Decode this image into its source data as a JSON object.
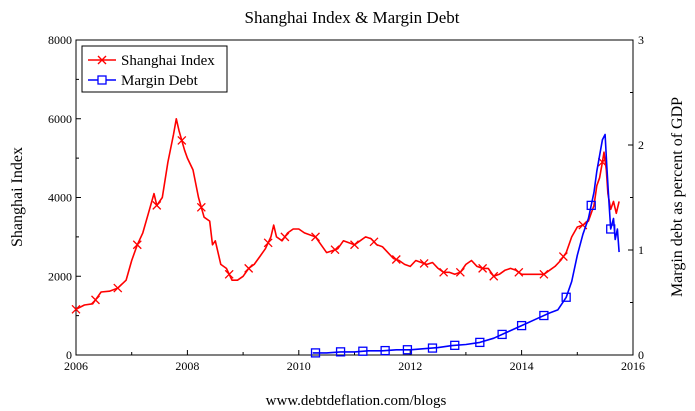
{
  "chart_data": {
    "type": "line",
    "title": "Shanghai Index & Margin Debt",
    "source": "www.debtdeflation.com/blogs",
    "xlabel": "",
    "ylabel_left": "Shanghai Index",
    "ylabel_right": "Margin debt as percent of GDP",
    "xlim": [
      2006,
      2016
    ],
    "ylim_left": [
      0,
      8000
    ],
    "ylim_right": [
      0,
      3
    ],
    "x_ticks": [
      "2006",
      "2008",
      "2010",
      "2012",
      "2014",
      "2016"
    ],
    "y_left_ticks": [
      "0",
      "2000",
      "4000",
      "6000",
      "8000"
    ],
    "y_right_ticks": [
      "0",
      "1",
      "2",
      "3"
    ],
    "grid": false,
    "legend_position": "top-left",
    "series": [
      {
        "name": "Shanghai Index",
        "axis": "left",
        "color": "#ff0000",
        "marker": "x",
        "points": [
          [
            2006.0,
            1160
          ],
          [
            2006.15,
            1270
          ],
          [
            2006.3,
            1300
          ],
          [
            2006.45,
            1600
          ],
          [
            2006.6,
            1620
          ],
          [
            2006.75,
            1700
          ],
          [
            2006.9,
            1900
          ],
          [
            2007.0,
            2400
          ],
          [
            2007.1,
            2800
          ],
          [
            2007.2,
            3100
          ],
          [
            2007.3,
            3600
          ],
          [
            2007.4,
            4100
          ],
          [
            2007.45,
            3800
          ],
          [
            2007.55,
            4000
          ],
          [
            2007.65,
            4900
          ],
          [
            2007.75,
            5600
          ],
          [
            2007.8,
            6000
          ],
          [
            2007.85,
            5700
          ],
          [
            2007.95,
            5200
          ],
          [
            2008.0,
            5000
          ],
          [
            2008.1,
            4700
          ],
          [
            2008.2,
            4000
          ],
          [
            2008.3,
            3500
          ],
          [
            2008.4,
            3400
          ],
          [
            2008.45,
            2800
          ],
          [
            2008.5,
            2900
          ],
          [
            2008.6,
            2300
          ],
          [
            2008.7,
            2200
          ],
          [
            2008.8,
            1900
          ],
          [
            2008.9,
            1900
          ],
          [
            2009.0,
            2000
          ],
          [
            2009.1,
            2200
          ],
          [
            2009.2,
            2300
          ],
          [
            2009.3,
            2500
          ],
          [
            2009.4,
            2700
          ],
          [
            2009.5,
            3000
          ],
          [
            2009.55,
            3300
          ],
          [
            2009.6,
            3000
          ],
          [
            2009.7,
            2900
          ],
          [
            2009.8,
            3100
          ],
          [
            2009.9,
            3200
          ],
          [
            2010.0,
            3200
          ],
          [
            2010.1,
            3100
          ],
          [
            2010.2,
            3050
          ],
          [
            2010.3,
            3000
          ],
          [
            2010.4,
            2800
          ],
          [
            2010.5,
            2600
          ],
          [
            2010.6,
            2650
          ],
          [
            2010.7,
            2700
          ],
          [
            2010.8,
            2900
          ],
          [
            2010.9,
            2850
          ],
          [
            2011.0,
            2800
          ],
          [
            2011.1,
            2900
          ],
          [
            2011.2,
            3000
          ],
          [
            2011.3,
            2950
          ],
          [
            2011.4,
            2800
          ],
          [
            2011.5,
            2750
          ],
          [
            2011.6,
            2600
          ],
          [
            2011.7,
            2450
          ],
          [
            2011.8,
            2400
          ],
          [
            2011.9,
            2300
          ],
          [
            2012.0,
            2250
          ],
          [
            2012.1,
            2400
          ],
          [
            2012.2,
            2350
          ],
          [
            2012.3,
            2300
          ],
          [
            2012.4,
            2350
          ],
          [
            2012.5,
            2200
          ],
          [
            2012.6,
            2100
          ],
          [
            2012.7,
            2100
          ],
          [
            2012.8,
            2050
          ],
          [
            2012.9,
            2100
          ],
          [
            2013.0,
            2300
          ],
          [
            2013.1,
            2400
          ],
          [
            2013.2,
            2250
          ],
          [
            2013.3,
            2200
          ],
          [
            2013.4,
            2200
          ],
          [
            2013.5,
            2000
          ],
          [
            2013.6,
            2050
          ],
          [
            2013.7,
            2150
          ],
          [
            2013.8,
            2200
          ],
          [
            2013.9,
            2150
          ],
          [
            2014.0,
            2050
          ],
          [
            2014.1,
            2050
          ],
          [
            2014.2,
            2050
          ],
          [
            2014.3,
            2050
          ],
          [
            2014.4,
            2050
          ],
          [
            2014.5,
            2150
          ],
          [
            2014.6,
            2250
          ],
          [
            2014.7,
            2400
          ],
          [
            2014.8,
            2600
          ],
          [
            2014.9,
            3000
          ],
          [
            2015.0,
            3250
          ],
          [
            2015.1,
            3300
          ],
          [
            2015.2,
            3400
          ],
          [
            2015.3,
            3800
          ],
          [
            2015.35,
            4300
          ],
          [
            2015.4,
            4500
          ],
          [
            2015.45,
            4900
          ],
          [
            2015.48,
            5150
          ],
          [
            2015.52,
            4700
          ],
          [
            2015.55,
            4100
          ],
          [
            2015.6,
            3700
          ],
          [
            2015.65,
            3900
          ],
          [
            2015.7,
            3600
          ],
          [
            2015.75,
            3900
          ]
        ],
        "markers_x": [
          2006.0,
          2006.35,
          2006.75,
          2007.1,
          2007.45,
          2007.9,
          2008.25,
          2008.75,
          2009.1,
          2009.45,
          2009.75,
          2010.3,
          2010.65,
          2011.0,
          2011.35,
          2011.75,
          2012.25,
          2012.6,
          2012.9,
          2013.3,
          2013.5,
          2013.95,
          2014.4,
          2014.75,
          2015.1,
          2015.45
        ]
      },
      {
        "name": "Margin Debt",
        "axis": "right",
        "color": "#0000ff",
        "marker": "square",
        "points": [
          [
            2010.25,
            0.02
          ],
          [
            2010.5,
            0.02
          ],
          [
            2010.75,
            0.03
          ],
          [
            2011.0,
            0.03
          ],
          [
            2011.25,
            0.04
          ],
          [
            2011.5,
            0.04
          ],
          [
            2011.75,
            0.05
          ],
          [
            2012.0,
            0.05
          ],
          [
            2012.25,
            0.06
          ],
          [
            2012.5,
            0.07
          ],
          [
            2012.75,
            0.09
          ],
          [
            2013.0,
            0.1
          ],
          [
            2013.25,
            0.12
          ],
          [
            2013.5,
            0.16
          ],
          [
            2013.75,
            0.22
          ],
          [
            2014.0,
            0.28
          ],
          [
            2014.25,
            0.34
          ],
          [
            2014.5,
            0.4
          ],
          [
            2014.65,
            0.43
          ],
          [
            2014.8,
            0.55
          ],
          [
            2014.9,
            0.7
          ],
          [
            2015.0,
            0.95
          ],
          [
            2015.1,
            1.15
          ],
          [
            2015.2,
            1.3
          ],
          [
            2015.3,
            1.55
          ],
          [
            2015.35,
            1.75
          ],
          [
            2015.4,
            1.9
          ],
          [
            2015.45,
            2.05
          ],
          [
            2015.5,
            2.1
          ],
          [
            2015.53,
            1.8
          ],
          [
            2015.57,
            1.45
          ],
          [
            2015.6,
            1.2
          ],
          [
            2015.65,
            1.3
          ],
          [
            2015.68,
            1.1
          ],
          [
            2015.72,
            1.2
          ],
          [
            2015.75,
            0.98
          ]
        ],
        "markers_x": [
          2010.3,
          2010.75,
          2011.15,
          2011.55,
          2011.95,
          2012.4,
          2012.8,
          2013.25,
          2013.65,
          2014.0,
          2014.4,
          2014.8,
          2015.25,
          2015.6
        ]
      }
    ]
  }
}
